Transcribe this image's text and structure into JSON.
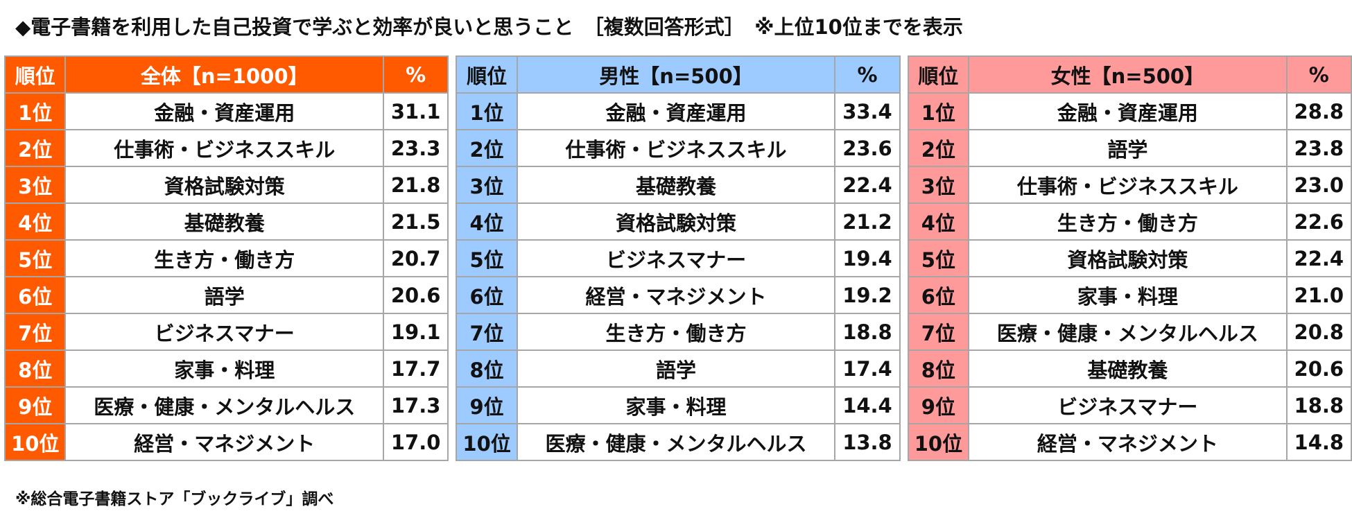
{
  "title": "◆電子書籍を利用した自己投資で学ぶと効率が良いと思うこと　［複数回答形式］　※上位10位までを表示",
  "footnote": "※総合電子書籍ストア「ブックライブ」調べ",
  "chart_data": {
    "type": "table",
    "tables": [
      {
        "headers": [
          "順位",
          "全体【n=1000】",
          "%"
        ],
        "rows": [
          {
            "rank": "1位",
            "item": "金融・資産運用",
            "value": "31.1"
          },
          {
            "rank": "2位",
            "item": "仕事術・ビジネススキル",
            "value": "23.3"
          },
          {
            "rank": "3位",
            "item": "資格試験対策",
            "value": "21.8"
          },
          {
            "rank": "4位",
            "item": "基礎教養",
            "value": "21.5"
          },
          {
            "rank": "5位",
            "item": "生き方・働き方",
            "value": "20.7"
          },
          {
            "rank": "6位",
            "item": "語学",
            "value": "20.6"
          },
          {
            "rank": "7位",
            "item": "ビジネスマナー",
            "value": "19.1"
          },
          {
            "rank": "8位",
            "item": "家事・料理",
            "value": "17.7"
          },
          {
            "rank": "9位",
            "item": "医療・健康・メンタルヘルス",
            "value": "17.3"
          },
          {
            "rank": "10位",
            "item": "経営・マネジメント",
            "value": "17.0"
          }
        ]
      },
      {
        "headers": [
          "順位",
          "男性【n=500】",
          "%"
        ],
        "rows": [
          {
            "rank": "1位",
            "item": "金融・資産運用",
            "value": "33.4"
          },
          {
            "rank": "2位",
            "item": "仕事術・ビジネススキル",
            "value": "23.6"
          },
          {
            "rank": "3位",
            "item": "基礎教養",
            "value": "22.4"
          },
          {
            "rank": "4位",
            "item": "資格試験対策",
            "value": "21.2"
          },
          {
            "rank": "5位",
            "item": "ビジネスマナー",
            "value": "19.4"
          },
          {
            "rank": "6位",
            "item": "経営・マネジメント",
            "value": "19.2"
          },
          {
            "rank": "7位",
            "item": "生き方・働き方",
            "value": "18.8"
          },
          {
            "rank": "8位",
            "item": "語学",
            "value": "17.4"
          },
          {
            "rank": "9位",
            "item": "家事・料理",
            "value": "14.4"
          },
          {
            "rank": "10位",
            "item": "医療・健康・メンタルヘルス",
            "value": "13.8"
          }
        ]
      },
      {
        "headers": [
          "順位",
          "女性【n=500】",
          "%"
        ],
        "rows": [
          {
            "rank": "1位",
            "item": "金融・資産運用",
            "value": "28.8"
          },
          {
            "rank": "2位",
            "item": "語学",
            "value": "23.8"
          },
          {
            "rank": "3位",
            "item": "仕事術・ビジネススキル",
            "value": "23.0"
          },
          {
            "rank": "4位",
            "item": "生き方・働き方",
            "value": "22.6"
          },
          {
            "rank": "5位",
            "item": "資格試験対策",
            "value": "22.4"
          },
          {
            "rank": "6位",
            "item": "家事・料理",
            "value": "21.0"
          },
          {
            "rank": "7位",
            "item": "医療・健康・メンタルヘルス",
            "value": "20.8"
          },
          {
            "rank": "8位",
            "item": "基礎教養",
            "value": "20.6"
          },
          {
            "rank": "9位",
            "item": "ビジネスマナー",
            "value": "18.8"
          },
          {
            "rank": "10位",
            "item": "経営・マネジメント",
            "value": "14.8"
          }
        ]
      }
    ]
  },
  "colors": {
    "overall_header": "#ff5a00",
    "male_header": "#9ecbff",
    "female_header": "#ff9a9a",
    "border": "#a6a6a6"
  }
}
